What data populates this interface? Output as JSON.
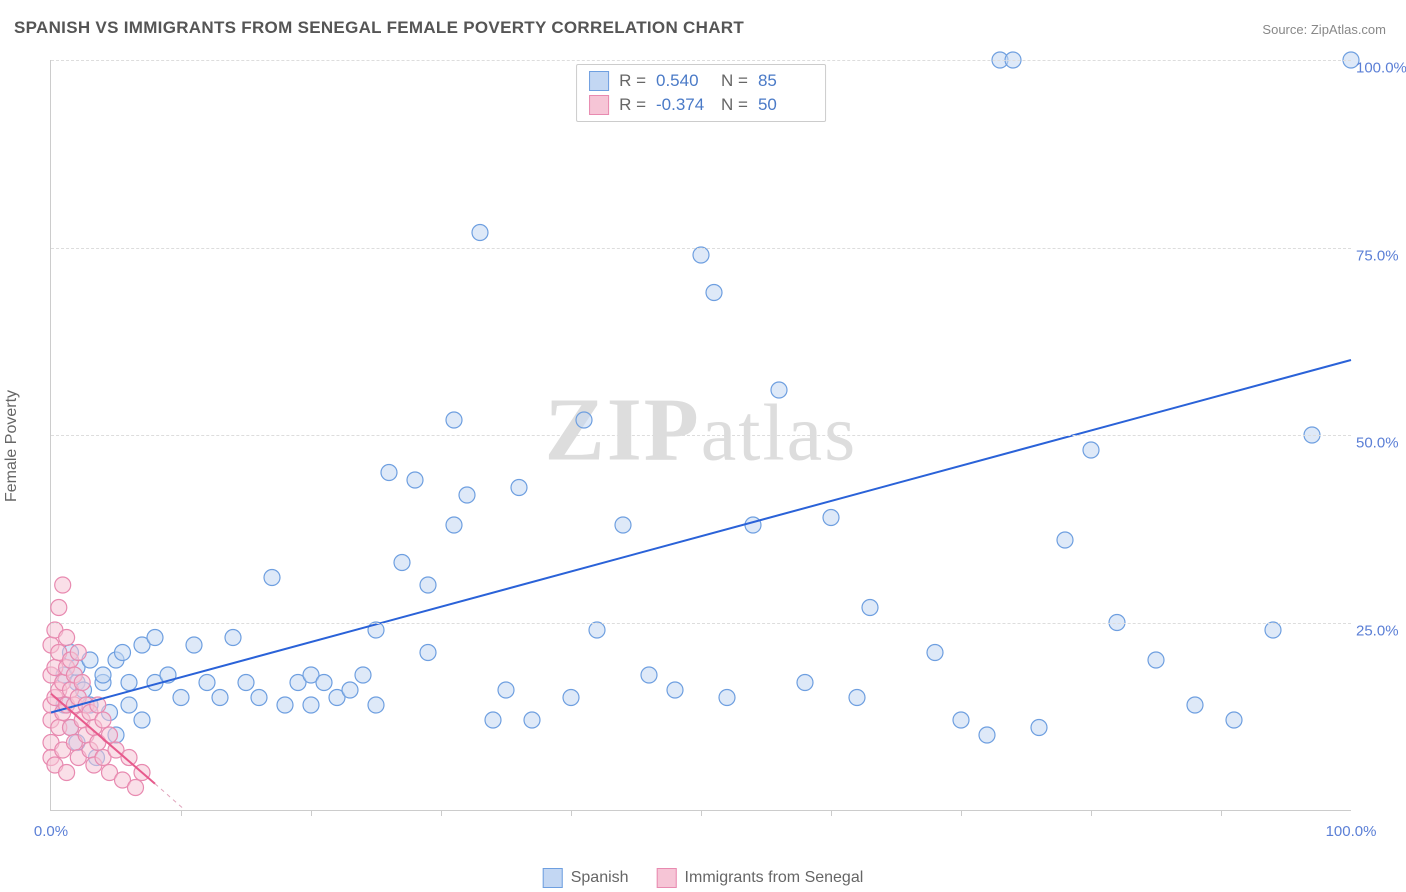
{
  "title": "SPANISH VS IMMIGRANTS FROM SENEGAL FEMALE POVERTY CORRELATION CHART",
  "source": {
    "label": "Source:",
    "value": "ZipAtlas.com"
  },
  "y_axis": {
    "title": "Female Poverty"
  },
  "watermark": "ZIPatlas",
  "chart": {
    "type": "scatter",
    "xlim": [
      0,
      100
    ],
    "ylim": [
      0,
      100
    ],
    "yticks": [
      {
        "v": 25,
        "label": "25.0%"
      },
      {
        "v": 50,
        "label": "50.0%"
      },
      {
        "v": 75,
        "label": "75.0%"
      },
      {
        "v": 100,
        "label": "100.0%"
      }
    ],
    "xticks_minor": [
      10,
      20,
      30,
      40,
      50,
      60,
      70,
      80,
      90
    ],
    "xtick_labels": [
      {
        "v": 0,
        "label": "0.0%"
      },
      {
        "v": 100,
        "label": "100.0%"
      }
    ],
    "marker_radius": 8,
    "marker_stroke_width": 1.2,
    "series": [
      {
        "name": "Spanish",
        "fill": "#c3d7f3",
        "stroke": "#6e9fe0",
        "fill_opacity": 0.55,
        "r": 0.54,
        "n": 85,
        "regression": {
          "x1": 0,
          "y1": 13,
          "x2": 100,
          "y2": 60,
          "color": "#2a62d8",
          "width": 2
        },
        "regression_extend": null,
        "points": [
          [
            1,
            18
          ],
          [
            1,
            14
          ],
          [
            1.5,
            21
          ],
          [
            1.5,
            11
          ],
          [
            2,
            17
          ],
          [
            2,
            19
          ],
          [
            2,
            9
          ],
          [
            2.5,
            16
          ],
          [
            3,
            14
          ],
          [
            3,
            20
          ],
          [
            3.5,
            7
          ],
          [
            4,
            17
          ],
          [
            4,
            18
          ],
          [
            4.5,
            13
          ],
          [
            5,
            20
          ],
          [
            5,
            10
          ],
          [
            5.5,
            21
          ],
          [
            6,
            14
          ],
          [
            6,
            17
          ],
          [
            7,
            22
          ],
          [
            7,
            12
          ],
          [
            8,
            23
          ],
          [
            8,
            17
          ],
          [
            9,
            18
          ],
          [
            10,
            15
          ],
          [
            11,
            22
          ],
          [
            12,
            17
          ],
          [
            13,
            15
          ],
          [
            14,
            23
          ],
          [
            15,
            17
          ],
          [
            16,
            15
          ],
          [
            17,
            31
          ],
          [
            18,
            14
          ],
          [
            19,
            17
          ],
          [
            20,
            14
          ],
          [
            20,
            18
          ],
          [
            21,
            17
          ],
          [
            22,
            15
          ],
          [
            23,
            16
          ],
          [
            24,
            18
          ],
          [
            25,
            24
          ],
          [
            25,
            14
          ],
          [
            26,
            45
          ],
          [
            27,
            33
          ],
          [
            28,
            44
          ],
          [
            29,
            30
          ],
          [
            29,
            21
          ],
          [
            31,
            52
          ],
          [
            31,
            38
          ],
          [
            32,
            42
          ],
          [
            33,
            77
          ],
          [
            34,
            12
          ],
          [
            35,
            16
          ],
          [
            36,
            43
          ],
          [
            37,
            12
          ],
          [
            40,
            15
          ],
          [
            41,
            52
          ],
          [
            42,
            24
          ],
          [
            44,
            38
          ],
          [
            46,
            18
          ],
          [
            48,
            16
          ],
          [
            50,
            74
          ],
          [
            51,
            69
          ],
          [
            52,
            15
          ],
          [
            54,
            38
          ],
          [
            56,
            56
          ],
          [
            58,
            17
          ],
          [
            60,
            39
          ],
          [
            62,
            15
          ],
          [
            63,
            27
          ],
          [
            68,
            21
          ],
          [
            70,
            12
          ],
          [
            72,
            10
          ],
          [
            73,
            100
          ],
          [
            74,
            100
          ],
          [
            76,
            11
          ],
          [
            78,
            36
          ],
          [
            80,
            48
          ],
          [
            82,
            25
          ],
          [
            85,
            20
          ],
          [
            88,
            14
          ],
          [
            91,
            12
          ],
          [
            94,
            24
          ],
          [
            97,
            50
          ],
          [
            100,
            100
          ]
        ]
      },
      {
        "name": "Immigrants from Senegal",
        "fill": "#f6c5d6",
        "stroke": "#e88ab0",
        "fill_opacity": 0.55,
        "r": -0.374,
        "n": 50,
        "regression": {
          "x1": 0,
          "y1": 15.5,
          "x2": 8,
          "y2": 3.5,
          "color": "#e75a8c",
          "width": 2
        },
        "regression_extend": {
          "x1": 8,
          "y1": 3.5,
          "x2": 10.3,
          "y2": 0,
          "color": "#e0a5bc",
          "width": 1,
          "dash": "4,4"
        },
        "points": [
          [
            0,
            12
          ],
          [
            0,
            14
          ],
          [
            0,
            18
          ],
          [
            0,
            22
          ],
          [
            0,
            9
          ],
          [
            0,
            7
          ],
          [
            0.3,
            15
          ],
          [
            0.3,
            19
          ],
          [
            0.3,
            24
          ],
          [
            0.3,
            6
          ],
          [
            0.6,
            16
          ],
          [
            0.6,
            11
          ],
          [
            0.6,
            21
          ],
          [
            0.6,
            27
          ],
          [
            0.9,
            13
          ],
          [
            0.9,
            17
          ],
          [
            0.9,
            8
          ],
          [
            0.9,
            30
          ],
          [
            1.2,
            14
          ],
          [
            1.2,
            19
          ],
          [
            1.2,
            23
          ],
          [
            1.2,
            5
          ],
          [
            1.5,
            16
          ],
          [
            1.5,
            11
          ],
          [
            1.5,
            20
          ],
          [
            1.8,
            14
          ],
          [
            1.8,
            18
          ],
          [
            1.8,
            9
          ],
          [
            2.1,
            15
          ],
          [
            2.1,
            7
          ],
          [
            2.1,
            21
          ],
          [
            2.4,
            12
          ],
          [
            2.4,
            17
          ],
          [
            2.7,
            10
          ],
          [
            2.7,
            14
          ],
          [
            3.0,
            8
          ],
          [
            3.0,
            13
          ],
          [
            3.3,
            11
          ],
          [
            3.3,
            6
          ],
          [
            3.6,
            9
          ],
          [
            3.6,
            14
          ],
          [
            4.0,
            7
          ],
          [
            4.0,
            12
          ],
          [
            4.5,
            5
          ],
          [
            4.5,
            10
          ],
          [
            5.0,
            8
          ],
          [
            5.5,
            4
          ],
          [
            6.0,
            7
          ],
          [
            6.5,
            3
          ],
          [
            7.0,
            5
          ]
        ]
      }
    ]
  },
  "legend_top": {
    "rows": [
      {
        "swatch_fill": "#c3d7f3",
        "swatch_stroke": "#6e9fe0",
        "r_label": "R =",
        "r_value": "0.540",
        "n_label": "N =",
        "n_value": "85"
      },
      {
        "swatch_fill": "#f6c5d6",
        "swatch_stroke": "#e88ab0",
        "r_label": "R =",
        "r_value": "-0.374",
        "n_label": "N =",
        "n_value": "50"
      }
    ]
  },
  "legend_bottom": {
    "items": [
      {
        "swatch_fill": "#c3d7f3",
        "swatch_stroke": "#6e9fe0",
        "label": "Spanish"
      },
      {
        "swatch_fill": "#f6c5d6",
        "swatch_stroke": "#e88ab0",
        "label": "Immigrants from Senegal"
      }
    ]
  },
  "colors": {
    "grid": "#dddddd",
    "axis": "#cccccc",
    "tick_text": "#5b7fd6",
    "title_text": "#555555",
    "body_bg": "#ffffff"
  }
}
